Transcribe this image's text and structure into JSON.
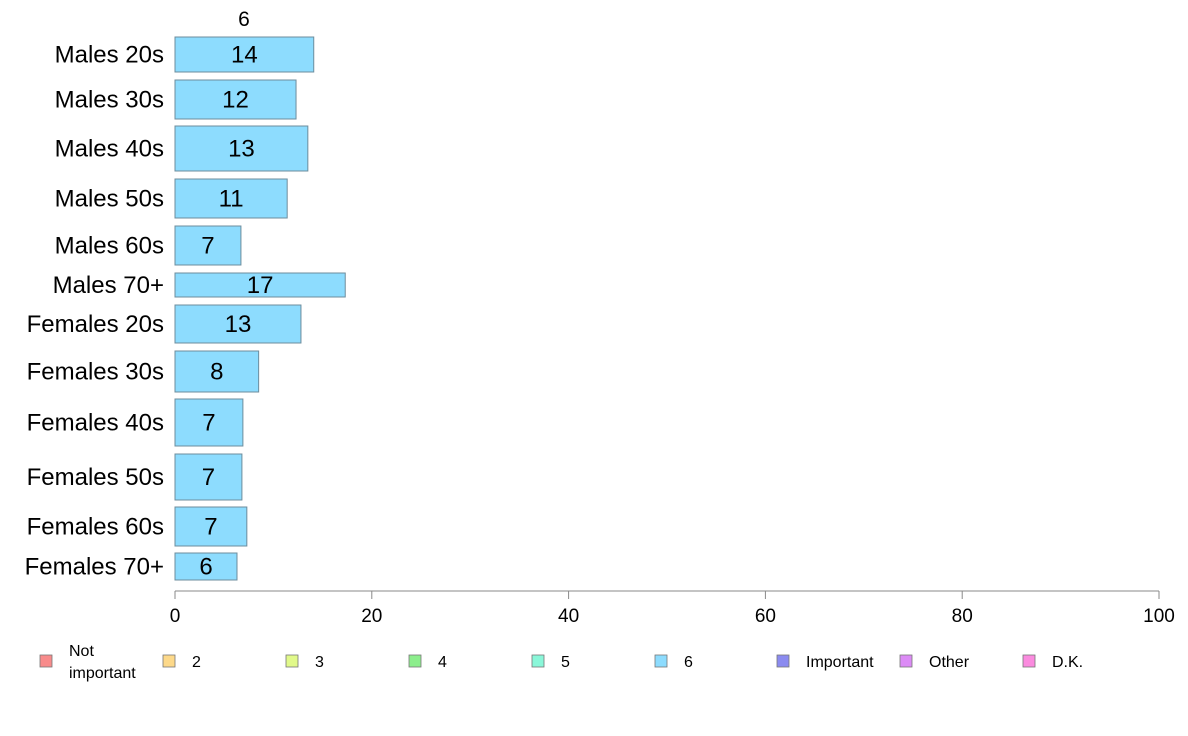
{
  "chart_data": {
    "type": "bar",
    "orientation": "horizontal",
    "title": "6",
    "categories": [
      "Males 20s",
      "Males 30s",
      "Males 40s",
      "Males 50s",
      "Males 60s",
      "Males 70+",
      "Females 20s",
      "Females 30s",
      "Females 40s",
      "Females 50s",
      "Females 60s",
      "Females 70+"
    ],
    "series": [
      {
        "name": "6",
        "color": "#8ddcfe",
        "values": [
          14.1,
          12.3,
          13.5,
          11.4,
          6.7,
          17.3,
          12.8,
          8.5,
          6.9,
          6.8,
          7.3,
          6.3
        ]
      }
    ],
    "data_labels": [
      "14",
      "12",
      "13",
      "11",
      "7",
      "17",
      "13",
      "8",
      "7",
      "7",
      "7",
      "6"
    ],
    "xlim": [
      0,
      100
    ],
    "xticks": [
      0,
      20,
      40,
      60,
      80,
      100
    ],
    "xtick_labels": [
      "0",
      "20",
      "40",
      "60",
      "80",
      "100"
    ],
    "grid": false,
    "legend_position": "bottom",
    "legend": [
      {
        "label": "Not important",
        "color": "#f88b8b"
      },
      {
        "label": "2",
        "color": "#fdd98a"
      },
      {
        "label": "3",
        "color": "#e1f98a"
      },
      {
        "label": "4",
        "color": "#8cee8c"
      },
      {
        "label": "5",
        "color": "#8af7d9"
      },
      {
        "label": "6",
        "color": "#8ddcfe"
      },
      {
        "label": "Important",
        "color": "#8b8bf0"
      },
      {
        "label": "Other",
        "color": "#dc8bf6"
      },
      {
        "label": "D.K.",
        "color": "#fb8bdf"
      }
    ]
  }
}
